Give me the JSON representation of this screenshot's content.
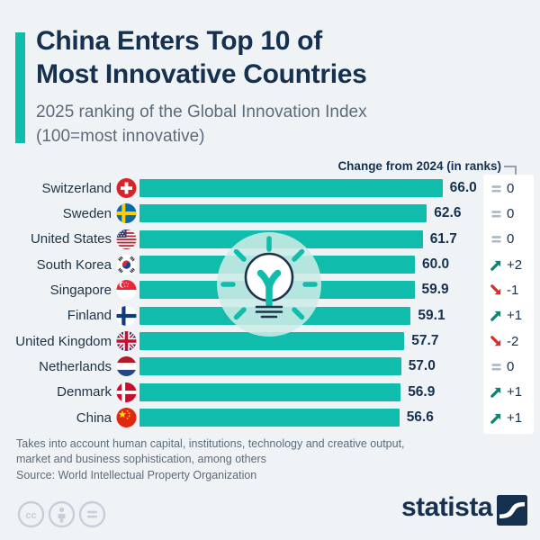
{
  "colors": {
    "background": "#eff3f6",
    "accent_teal": "#10bcab",
    "title_navy": "#16304f",
    "subtitle_gray": "#5c6b7a",
    "trend_up_green": "#0b8473",
    "trend_down_red": "#d2312e",
    "trend_flat_gray": "#aeb9c4",
    "change_panel_white": "#ffffff"
  },
  "header": {
    "title_line1": "China Enters Top 10 of",
    "title_line2": "Most Innovative Countries",
    "subtitle_line1": "2025 ranking of the Global Innovation Index",
    "subtitle_line2": "(100=most innovative)"
  },
  "chart_data": {
    "type": "bar",
    "orientation": "horizontal",
    "title": "2025 ranking of the Global Innovation Index (100=most innovative)",
    "xlim": [
      0,
      66
    ],
    "grid": false,
    "legend": "none",
    "change_column_header": "Change from 2024 (in ranks)",
    "categories": [
      "Switzerland",
      "Sweden",
      "United States",
      "South Korea",
      "Singapore",
      "Finland",
      "United Kingdom",
      "Netherlands",
      "Denmark",
      "China"
    ],
    "values": [
      66.0,
      62.6,
      61.7,
      60.0,
      59.9,
      59.1,
      57.7,
      57.0,
      56.9,
      56.6
    ],
    "rows": [
      {
        "country": "Switzerland",
        "flag": "switzerland",
        "score": 66.0,
        "score_label": "66.0",
        "change_label": "0",
        "trend": "flat"
      },
      {
        "country": "Sweden",
        "flag": "sweden",
        "score": 62.6,
        "score_label": "62.6",
        "change_label": "0",
        "trend": "flat"
      },
      {
        "country": "United States",
        "flag": "united-states",
        "score": 61.7,
        "score_label": "61.7",
        "change_label": "0",
        "trend": "flat"
      },
      {
        "country": "South Korea",
        "flag": "south-korea",
        "score": 60.0,
        "score_label": "60.0",
        "change_label": "+2",
        "trend": "up"
      },
      {
        "country": "Singapore",
        "flag": "singapore",
        "score": 59.9,
        "score_label": "59.9",
        "change_label": "-1",
        "trend": "down"
      },
      {
        "country": "Finland",
        "flag": "finland",
        "score": 59.1,
        "score_label": "59.1",
        "change_label": "+1",
        "trend": "up"
      },
      {
        "country": "United Kingdom",
        "flag": "united-kingdom",
        "score": 57.7,
        "score_label": "57.7",
        "change_label": "-2",
        "trend": "down"
      },
      {
        "country": "Netherlands",
        "flag": "netherlands",
        "score": 57.0,
        "score_label": "57.0",
        "change_label": "0",
        "trend": "flat"
      },
      {
        "country": "Denmark",
        "flag": "denmark",
        "score": 56.9,
        "score_label": "56.9",
        "change_label": "+1",
        "trend": "up"
      },
      {
        "country": "China",
        "flag": "china",
        "score": 56.6,
        "score_label": "56.6",
        "change_label": "+1",
        "trend": "up"
      }
    ]
  },
  "watermark": {
    "icon": "lightbulb-icon"
  },
  "footer": {
    "note_line1": "Takes into account human capital, institutions, technology and creative output,",
    "note_line2": "market and business sophistication, among others",
    "source": "Source: World Intellectual Property Organization",
    "license_icons": [
      "cc-icon",
      "attribution-person-icon",
      "equals-icon"
    ]
  },
  "branding": {
    "logo_text": "statista"
  }
}
